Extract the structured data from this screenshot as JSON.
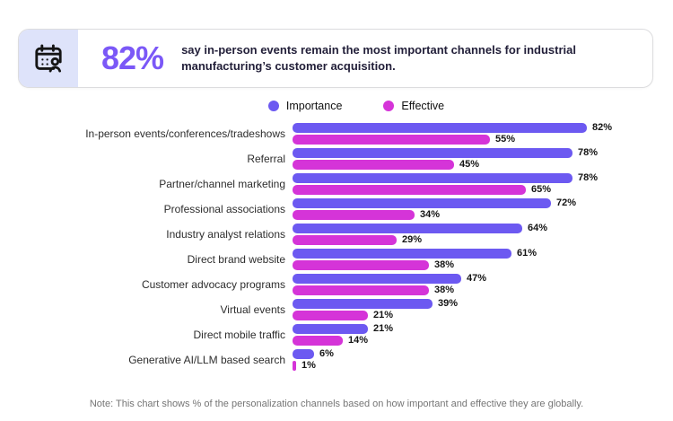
{
  "header": {
    "stat": "82%",
    "title": "say in-person events remain the most important channels for industrial manufacturing’s customer acquisition.",
    "icon": "calendar-user-icon"
  },
  "legend": {
    "items": [
      {
        "label": "Importance",
        "color": "#6c59f1"
      },
      {
        "label": "Effective",
        "color": "#d534d8"
      }
    ]
  },
  "chart_data": {
    "type": "bar",
    "orientation": "horizontal",
    "categories": [
      "In-person events/conferences/tradeshows",
      "Referral",
      "Partner/channel marketing",
      "Professional associations",
      "Industry analyst relations",
      "Direct brand website",
      "Customer advocacy programs",
      "Virtual events",
      "Direct mobile traffic",
      "Generative AI/LLM based search"
    ],
    "series": [
      {
        "name": "Importance",
        "color": "#6c59f1",
        "values": [
          82,
          78,
          78,
          72,
          64,
          61,
          47,
          39,
          21,
          6
        ]
      },
      {
        "name": "Effective",
        "color": "#d534d8",
        "values": [
          55,
          45,
          65,
          34,
          29,
          38,
          38,
          21,
          14,
          1
        ]
      }
    ],
    "value_suffix": "%",
    "xlim": [
      0,
      100
    ],
    "data_labels": true,
    "grid": false,
    "legend_position": "top"
  },
  "note": "Note: This chart shows % of the personalization channels based on how important and effective they are globally.",
  "colors": {
    "stat_purple": "#7b58f7",
    "importance_bar": "#6c59f1",
    "effective_bar": "#d534d8",
    "icon_panel_bg": "#dee3fa",
    "card_border": "#dcdcde"
  }
}
